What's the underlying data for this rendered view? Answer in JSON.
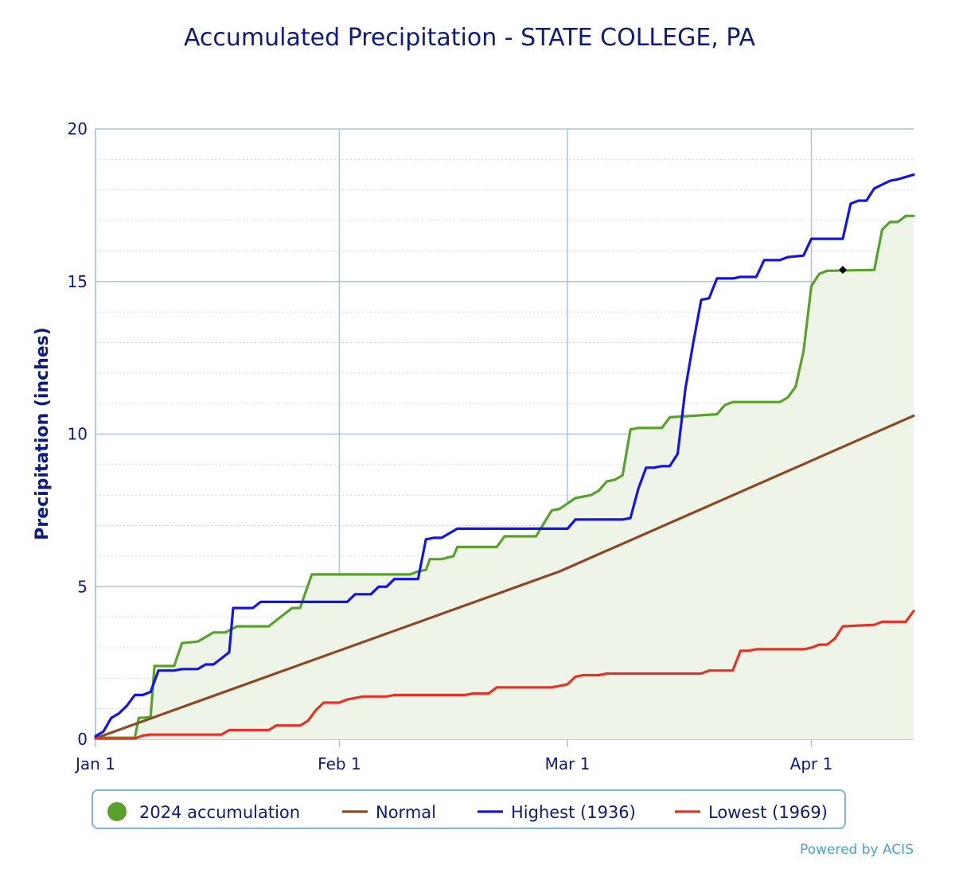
{
  "chart_data": {
    "type": "line",
    "title": "Accumulated Precipitation - STATE COLLEGE, PA",
    "xlabel": "",
    "ylabel": "Precipitation (inches)",
    "ylim": [
      0,
      20
    ],
    "y_ticks": [
      "0",
      "5",
      "10",
      "15",
      "20"
    ],
    "x_range_days": [
      1,
      105
    ],
    "x_ticks": [
      {
        "label": "Jan 1",
        "day": 1
      },
      {
        "label": "Feb 1",
        "day": 32
      },
      {
        "label": "Mar 1",
        "day": 61
      },
      {
        "label": "Apr 1",
        "day": 92
      }
    ],
    "grid": true,
    "legend_position": "bottom",
    "credit": "Powered by ACIS",
    "series": [
      {
        "name": "2024 accumulation",
        "color": "#5aa02c",
        "fill": "#eef5e8",
        "marker": "circle",
        "points": [
          [
            1,
            0.05
          ],
          [
            6,
            0.05
          ],
          [
            6.5,
            0.7
          ],
          [
            8,
            0.72
          ],
          [
            8.5,
            2.4
          ],
          [
            11,
            2.4
          ],
          [
            12,
            3.15
          ],
          [
            14,
            3.2
          ],
          [
            16,
            3.5
          ],
          [
            17.5,
            3.5
          ],
          [
            19,
            3.7
          ],
          [
            23,
            3.7
          ],
          [
            26,
            4.3
          ],
          [
            27,
            4.3
          ],
          [
            28.5,
            5.4
          ],
          [
            41,
            5.4
          ],
          [
            42,
            5.5
          ],
          [
            43,
            5.55
          ],
          [
            43.5,
            5.9
          ],
          [
            45,
            5.9
          ],
          [
            46.5,
            6.0
          ],
          [
            47,
            6.3
          ],
          [
            52,
            6.3
          ],
          [
            53,
            6.65
          ],
          [
            57,
            6.65
          ],
          [
            59,
            7.5
          ],
          [
            60,
            7.55
          ],
          [
            62,
            7.9
          ],
          [
            63,
            7.95
          ],
          [
            64,
            8.0
          ],
          [
            65,
            8.15
          ],
          [
            66,
            8.45
          ],
          [
            67,
            8.5
          ],
          [
            68,
            8.65
          ],
          [
            69,
            10.15
          ],
          [
            70,
            10.2
          ],
          [
            73,
            10.2
          ],
          [
            74,
            10.55
          ],
          [
            77,
            10.6
          ],
          [
            80,
            10.65
          ],
          [
            81,
            10.95
          ],
          [
            82,
            11.05
          ],
          [
            88,
            11.05
          ],
          [
            89,
            11.2
          ],
          [
            90,
            11.55
          ],
          [
            91,
            12.7
          ],
          [
            92,
            14.85
          ],
          [
            93,
            15.25
          ],
          [
            94,
            15.35
          ],
          [
            100,
            15.38
          ],
          [
            101,
            16.7
          ],
          [
            102,
            16.95
          ],
          [
            103,
            16.95
          ],
          [
            104,
            17.15
          ],
          [
            105,
            17.15
          ]
        ]
      },
      {
        "name": "Normal",
        "color": "#8b4a25",
        "marker": "line",
        "points": [
          [
            1,
            0.03
          ],
          [
            60,
            5.5
          ],
          [
            105,
            10.6
          ]
        ]
      },
      {
        "name": "Highest (1936)",
        "color": "#1414e6",
        "marker": "line",
        "points": [
          [
            1,
            0.1
          ],
          [
            2,
            0.25
          ],
          [
            3,
            0.7
          ],
          [
            4,
            0.85
          ],
          [
            5,
            1.1
          ],
          [
            6,
            1.45
          ],
          [
            7,
            1.45
          ],
          [
            8,
            1.55
          ],
          [
            9,
            2.25
          ],
          [
            11,
            2.25
          ],
          [
            12,
            2.3
          ],
          [
            14,
            2.3
          ],
          [
            15,
            2.45
          ],
          [
            16,
            2.45
          ],
          [
            17,
            2.65
          ],
          [
            18,
            2.85
          ],
          [
            18.5,
            4.3
          ],
          [
            21,
            4.3
          ],
          [
            22,
            4.5
          ],
          [
            33,
            4.5
          ],
          [
            34,
            4.75
          ],
          [
            36,
            4.75
          ],
          [
            37,
            5.0
          ],
          [
            38,
            5.0
          ],
          [
            39,
            5.25
          ],
          [
            42,
            5.25
          ],
          [
            43,
            6.55
          ],
          [
            44,
            6.6
          ],
          [
            45,
            6.6
          ],
          [
            47,
            6.9
          ],
          [
            61,
            6.9
          ],
          [
            62,
            7.2
          ],
          [
            68,
            7.2
          ],
          [
            69,
            7.25
          ],
          [
            70,
            8.2
          ],
          [
            71,
            8.9
          ],
          [
            72,
            8.9
          ],
          [
            73,
            8.95
          ],
          [
            74,
            8.95
          ],
          [
            75,
            9.35
          ],
          [
            76,
            11.5
          ],
          [
            77,
            13.0
          ],
          [
            78,
            14.4
          ],
          [
            79,
            14.45
          ],
          [
            80,
            15.1
          ],
          [
            82,
            15.1
          ],
          [
            83,
            15.15
          ],
          [
            85,
            15.15
          ],
          [
            86,
            15.7
          ],
          [
            88,
            15.7
          ],
          [
            89,
            15.8
          ],
          [
            91,
            15.85
          ],
          [
            92,
            16.4
          ],
          [
            96,
            16.4
          ],
          [
            97,
            17.55
          ],
          [
            98,
            17.65
          ],
          [
            99,
            17.65
          ],
          [
            100,
            18.05
          ],
          [
            102,
            18.3
          ],
          [
            103,
            18.35
          ],
          [
            105,
            18.5
          ]
        ]
      },
      {
        "name": "Lowest (1969)",
        "color": "#e63327",
        "marker": "line",
        "points": [
          [
            1,
            0.02
          ],
          [
            6,
            0.02
          ],
          [
            7,
            0.12
          ],
          [
            8,
            0.15
          ],
          [
            17,
            0.15
          ],
          [
            18,
            0.3
          ],
          [
            23,
            0.3
          ],
          [
            24,
            0.45
          ],
          [
            27,
            0.45
          ],
          [
            28,
            0.6
          ],
          [
            29,
            0.95
          ],
          [
            30,
            1.2
          ],
          [
            32,
            1.2
          ],
          [
            33,
            1.3
          ],
          [
            35,
            1.4
          ],
          [
            38,
            1.4
          ],
          [
            39,
            1.45
          ],
          [
            48,
            1.45
          ],
          [
            49,
            1.5
          ],
          [
            51,
            1.5
          ],
          [
            52,
            1.7
          ],
          [
            59,
            1.7
          ],
          [
            60,
            1.75
          ],
          [
            61,
            1.8
          ],
          [
            62,
            2.05
          ],
          [
            63,
            2.1
          ],
          [
            65,
            2.1
          ],
          [
            66,
            2.15
          ],
          [
            78,
            2.15
          ],
          [
            79,
            2.25
          ],
          [
            82,
            2.25
          ],
          [
            83,
            2.9
          ],
          [
            84,
            2.9
          ],
          [
            85,
            2.95
          ],
          [
            91,
            2.95
          ],
          [
            92,
            3.0
          ],
          [
            93,
            3.1
          ],
          [
            94,
            3.1
          ],
          [
            95,
            3.3
          ],
          [
            96,
            3.7
          ],
          [
            100,
            3.75
          ],
          [
            101,
            3.85
          ],
          [
            104,
            3.85
          ],
          [
            105,
            4.2
          ]
        ]
      }
    ],
    "annotations": [
      {
        "type": "diamond-marker",
        "day": 96,
        "value": 15.38,
        "color": "#000000"
      }
    ]
  }
}
